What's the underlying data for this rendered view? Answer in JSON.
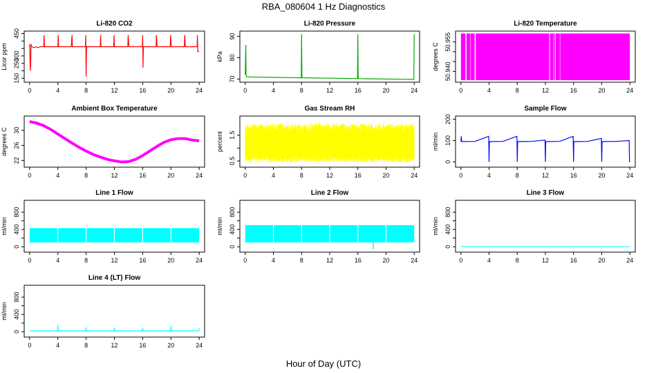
{
  "figure": {
    "title": "RBA_080604  1 Hz Diagnostics",
    "xlabel": "Hour of Day (UTC)"
  },
  "chart_data": [
    {
      "type": "line",
      "title": "Li-820 CO2",
      "ylabel": "Licor ppm",
      "color": "#ff0000",
      "xlim": [
        0,
        24
      ],
      "xticks": [
        0,
        4,
        8,
        12,
        16,
        20,
        24
      ],
      "ylim": [
        130,
        460
      ],
      "yticks": [
        150,
        200,
        250,
        300,
        350,
        400,
        450
      ],
      "ytick_labels": [
        "150",
        "",
        "250",
        "300",
        "",
        "",
        "450"
      ],
      "series": [
        {
          "name": "CO2",
          "x": [
            0,
            0.1,
            0.15,
            0.2,
            0.3,
            0.6,
            0.9,
            1.2,
            1.5,
            2.0,
            2.05,
            2.1,
            3.5,
            4.0,
            4.05,
            4.1,
            5.9,
            6.0,
            6.05,
            7.0,
            7.9,
            7.95,
            8.0,
            8.05,
            8.1,
            10.0,
            10.05,
            10.1,
            11.9,
            11.95,
            12.0,
            12.1,
            13.9,
            13.95,
            14.05,
            15.9,
            15.95,
            16.0,
            16.05,
            16.1,
            17.9,
            17.95,
            18.05,
            19.9,
            19.95,
            20.05,
            21.9,
            21.95,
            22.05,
            23.7,
            23.75,
            23.8,
            24
          ],
          "y": [
            380,
            200,
            245,
            380,
            362,
            355,
            362,
            356,
            362,
            362,
            440,
            362,
            362,
            362,
            440,
            362,
            362,
            440,
            362,
            362,
            362,
            440,
            160,
            340,
            362,
            362,
            440,
            362,
            362,
            440,
            362,
            362,
            362,
            440,
            362,
            362,
            362,
            440,
            220,
            362,
            362,
            440,
            362,
            362,
            440,
            362,
            362,
            440,
            362,
            362,
            440,
            330,
            330
          ]
        }
      ]
    },
    {
      "type": "line",
      "title": "Li-820 Pressure",
      "ylabel": "kPa",
      "color": "#00aa00",
      "xlim": [
        0,
        24
      ],
      "xticks": [
        0,
        4,
        8,
        12,
        16,
        20,
        24
      ],
      "ylim": [
        69,
        92
      ],
      "yticks": [
        70,
        80,
        90
      ],
      "ytick_labels": [
        "70",
        "80",
        "90"
      ],
      "series": [
        {
          "name": "Pressure",
          "x": [
            0,
            0.08,
            0.12,
            0.2,
            0.4,
            2,
            4,
            6,
            7.95,
            8.0,
            8.05,
            10,
            12,
            14,
            15.95,
            16.0,
            16.05,
            18,
            20,
            22,
            23.95,
            24.0
          ],
          "y": [
            72,
            86,
            72,
            71,
            71,
            70.9,
            70.8,
            70.7,
            70.6,
            91,
            70.6,
            70.5,
            70.4,
            70.3,
            70.2,
            91,
            70.2,
            70.1,
            70.0,
            69.9,
            69.8,
            91
          ]
        }
      ]
    },
    {
      "type": "area",
      "title": "Li-820 Temperature",
      "ylabel": "degrees C",
      "color": "#ff00ff",
      "xlim": [
        0,
        24
      ],
      "xticks": [
        0,
        4,
        8,
        12,
        16,
        20,
        24
      ],
      "ylim": [
        50.935,
        50.96
      ],
      "yticks": [
        50.94,
        50.945,
        50.95,
        50.955
      ],
      "ytick_labels": [
        "50.940",
        "",
        "",
        "50.955"
      ],
      "band": [
        50.9355,
        50.9593
      ],
      "gaps": [
        [
          0.6,
          0.8
        ],
        [
          1.3,
          1.4
        ],
        [
          1.9,
          2.1
        ],
        [
          12.5,
          12.65
        ],
        [
          13.1,
          13.2
        ],
        [
          13.3,
          13.45
        ],
        [
          14.0,
          14.1
        ]
      ]
    },
    {
      "type": "line",
      "title": "Ambient Box Temperature",
      "ylabel": "degrees C",
      "color": "#ff00ff",
      "xlim": [
        0,
        24
      ],
      "xticks": [
        0,
        4,
        8,
        12,
        16,
        20,
        24
      ],
      "ylim": [
        20.5,
        33.5
      ],
      "yticks": [
        22,
        26,
        30
      ],
      "ytick_labels": [
        "22",
        "26",
        "30"
      ],
      "series": [
        {
          "name": "Ambient Temp",
          "x": [
            0,
            1,
            2,
            3,
            4,
            5,
            6,
            7,
            8,
            9,
            10,
            11,
            12,
            13,
            14,
            15,
            16,
            17,
            18,
            19,
            20,
            21,
            22,
            23,
            24
          ],
          "y": [
            32.3,
            31.9,
            31.2,
            30.2,
            29.0,
            27.8,
            26.6,
            25.5,
            24.5,
            23.6,
            22.9,
            22.3,
            21.9,
            21.6,
            21.7,
            22.3,
            23.3,
            24.5,
            25.7,
            26.8,
            27.5,
            27.8,
            27.8,
            27.4,
            27.2
          ]
        }
      ]
    },
    {
      "type": "area",
      "title": "Gas Stream RH",
      "ylabel": "percent",
      "color": "#ffff00",
      "xlim": [
        0,
        24
      ],
      "xticks": [
        0,
        4,
        8,
        12,
        16,
        20,
        24
      ],
      "ylim": [
        0.3,
        2.2
      ],
      "yticks": [
        0.5,
        1.0,
        1.5
      ],
      "ytick_labels": [
        "0.5",
        "",
        "1.5"
      ],
      "band": [
        0.45,
        1.95
      ]
    },
    {
      "type": "line",
      "title": "Sample Flow",
      "ylabel": "ml/min",
      "color": "#0000ff",
      "xlim": [
        0,
        24
      ],
      "xticks": [
        0,
        4,
        8,
        12,
        16,
        20,
        24
      ],
      "ylim": [
        -20,
        210
      ],
      "yticks": [
        0,
        100,
        200
      ],
      "ytick_labels": [
        "0",
        "100",
        "200"
      ],
      "series": [
        {
          "name": "Sample Flow",
          "x": [
            0,
            0.05,
            0.1,
            2,
            3.95,
            4.0,
            4.05,
            6,
            7.95,
            8.0,
            8.05,
            10,
            11.95,
            12.0,
            12.05,
            14,
            15.95,
            16.0,
            16.05,
            18,
            19.95,
            20.0,
            20.05,
            22,
            23.9,
            23.95,
            24.0
          ],
          "y": [
            95,
            120,
            95,
            96,
            120,
            0,
            95,
            96,
            120,
            0,
            95,
            96,
            102,
            0,
            95,
            96,
            120,
            0,
            95,
            96,
            110,
            0,
            95,
            96,
            100,
            0,
            0
          ]
        }
      ]
    },
    {
      "type": "area",
      "title": "Line 1 Flow",
      "ylabel": "ml/min",
      "color": "#00ffff",
      "xlim": [
        0,
        24
      ],
      "xticks": [
        0,
        4,
        8,
        12,
        16,
        20,
        24
      ],
      "ylim": [
        -100,
        1050
      ],
      "yticks": [
        0,
        200,
        400,
        600,
        800
      ],
      "ytick_labels": [
        "0",
        "",
        "400",
        "",
        "800"
      ],
      "band": [
        100,
        430
      ],
      "notches": [
        4,
        8,
        12,
        16,
        20
      ]
    },
    {
      "type": "area",
      "title": "Line 2 Flow",
      "ylabel": "ml/min",
      "color": "#00ffff",
      "xlim": [
        0,
        24
      ],
      "xticks": [
        0,
        4,
        8,
        12,
        16,
        20,
        24
      ],
      "ylim": [
        -100,
        1050
      ],
      "yticks": [
        0,
        200,
        400,
        600,
        800
      ],
      "ytick_labels": [
        "0",
        "",
        "400",
        "",
        "800"
      ],
      "band": [
        100,
        500
      ],
      "notches": [
        4,
        8,
        12,
        16,
        20
      ],
      "dip": {
        "x": 18.2,
        "y": -60
      }
    },
    {
      "type": "line",
      "title": "Line 3 Flow",
      "ylabel": "ml/min",
      "color": "#00ffff",
      "xlim": [
        0,
        24
      ],
      "xticks": [
        0,
        4,
        8,
        12,
        16,
        20,
        24
      ],
      "ylim": [
        -100,
        1050
      ],
      "yticks": [
        0,
        200,
        400,
        600,
        800
      ],
      "ytick_labels": [
        "0",
        "",
        "400",
        "",
        "800"
      ],
      "series": [
        {
          "name": "Line 3",
          "x": [
            0,
            24
          ],
          "y": [
            0,
            0
          ]
        }
      ]
    },
    {
      "type": "line",
      "title": "Line 4 (LT) Flow",
      "ylabel": "ml/min",
      "color": "#00ffff",
      "xlim": [
        0,
        24
      ],
      "xticks": [
        0,
        4,
        8,
        12,
        16,
        20,
        24
      ],
      "ylim": [
        -100,
        1050
      ],
      "yticks": [
        0,
        200,
        400,
        600,
        800
      ],
      "ytick_labels": [
        "0",
        "",
        "400",
        "",
        "800"
      ],
      "series": [
        {
          "name": "Line 4",
          "x": [
            0,
            3.95,
            4.0,
            4.05,
            7.95,
            8.0,
            8.05,
            11.95,
            12.0,
            12.05,
            15.95,
            16.0,
            16.05,
            19.95,
            20.0,
            20.05,
            23.95,
            24.0
          ],
          "y": [
            20,
            20,
            150,
            20,
            20,
            100,
            20,
            20,
            100,
            20,
            20,
            80,
            20,
            20,
            130,
            20,
            20,
            80
          ]
        }
      ]
    }
  ]
}
